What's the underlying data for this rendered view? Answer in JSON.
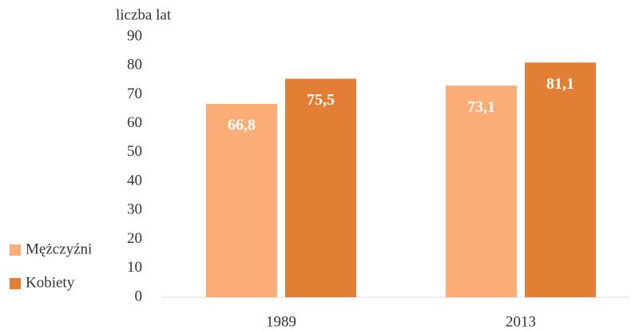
{
  "chart_data": {
    "type": "bar",
    "y_axis_label": "liczba lat",
    "categories": [
      "1989",
      "2013"
    ],
    "series": [
      {
        "name": "Mężczyźni",
        "color": "#fbad78",
        "values": [
          66.8,
          73.1
        ],
        "value_labels": [
          "66,8",
          "73,1"
        ]
      },
      {
        "name": "Kobiety",
        "color": "#e27f34",
        "values": [
          75.5,
          81.1
        ],
        "value_labels": [
          "75,5",
          "81,1"
        ]
      }
    ],
    "ylim": [
      0,
      90
    ],
    "yticks": [
      0,
      10,
      20,
      30,
      40,
      50,
      60,
      70,
      80,
      90
    ],
    "grid": false,
    "legend": "left"
  }
}
